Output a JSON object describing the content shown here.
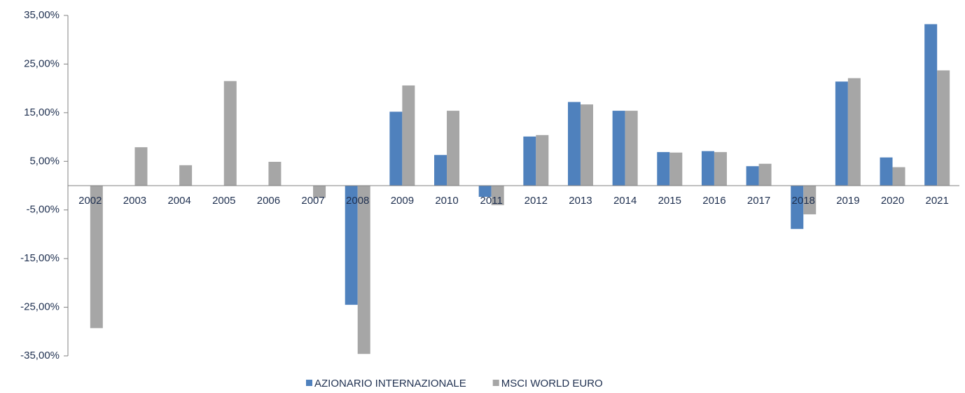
{
  "chart_data": {
    "type": "bar",
    "categories": [
      "2002",
      "2003",
      "2004",
      "2005",
      "2006",
      "2007",
      "2008",
      "2009",
      "2010",
      "2011",
      "2012",
      "2013",
      "2014",
      "2015",
      "2016",
      "2017",
      "2018",
      "2019",
      "2020",
      "2021"
    ],
    "series": [
      {
        "name": "AZIONARIO INTERNAZIONALE",
        "color": "#4f81bd",
        "values": [
          null,
          null,
          null,
          null,
          null,
          null,
          -24.5,
          15.2,
          6.3,
          -2.3,
          10.1,
          17.2,
          15.4,
          6.9,
          7.1,
          4.0,
          -8.9,
          21.4,
          5.8,
          33.2
        ]
      },
      {
        "name": "MSCI WORLD EURO",
        "color": "#a6a6a6",
        "values": [
          -29.3,
          7.9,
          4.2,
          21.5,
          4.9,
          -2.5,
          -34.6,
          20.6,
          15.4,
          -4.0,
          10.4,
          16.7,
          15.4,
          6.8,
          6.9,
          4.5,
          -5.9,
          22.1,
          3.8,
          23.7
        ]
      }
    ],
    "ylim": [
      -35,
      35
    ],
    "yticks": [
      {
        "value": 35,
        "label": "35,00%"
      },
      {
        "value": 25,
        "label": "25,00%"
      },
      {
        "value": 15,
        "label": "15,00%"
      },
      {
        "value": 5,
        "label": "5,00%"
      },
      {
        "value": -5,
        "label": "-5,00%"
      },
      {
        "value": -15,
        "label": "-15,00%"
      },
      {
        "value": -25,
        "label": "-25,00%"
      },
      {
        "value": -35,
        "label": "-35,00%"
      }
    ],
    "legend": "bottom"
  }
}
